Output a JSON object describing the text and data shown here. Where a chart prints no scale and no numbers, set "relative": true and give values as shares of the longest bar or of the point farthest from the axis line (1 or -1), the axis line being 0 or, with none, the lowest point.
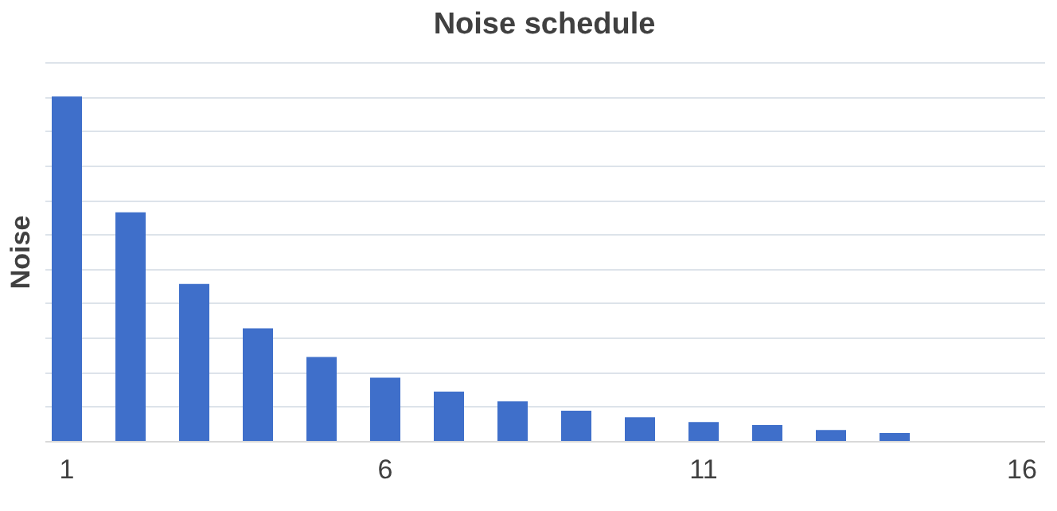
{
  "chart_data": {
    "type": "bar",
    "title": "Noise schedule",
    "ylabel": "Noise",
    "categories": [
      "1",
      null,
      null,
      null,
      null,
      "6",
      null,
      null,
      null,
      null,
      "11",
      null,
      null,
      null,
      null,
      "16"
    ],
    "values": [
      1,
      0.664,
      0.456,
      0.327,
      0.244,
      0.184,
      0.143,
      0.115,
      0.088,
      0.069,
      0.055,
      0.046,
      0.032,
      0.023,
      0,
      0
    ],
    "color": "#3f6fca",
    "relative": true,
    "grid": "y"
  }
}
